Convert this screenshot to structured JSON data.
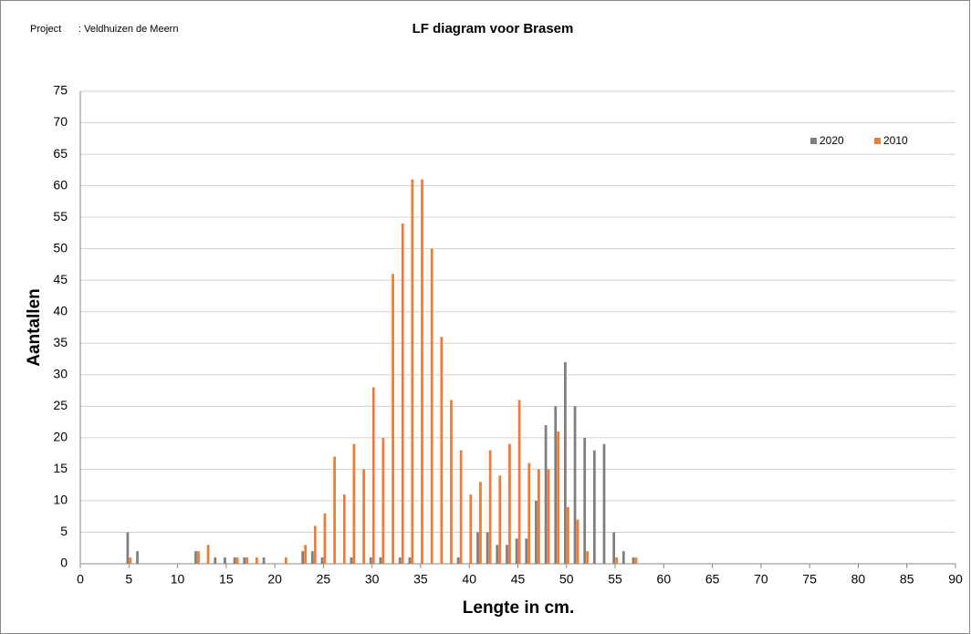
{
  "header": {
    "project_label": "Project",
    "project_name": ": Veldhuizen de Meern"
  },
  "chart_data": {
    "type": "bar",
    "title": "LF diagram voor Brasem",
    "x_label": "Lengte in cm.",
    "y_label": "Aantallen",
    "x": [
      5,
      6,
      12,
      13,
      14,
      15,
      16,
      17,
      18,
      19,
      21,
      23,
      24,
      25,
      26,
      27,
      28,
      29,
      30,
      31,
      32,
      33,
      34,
      35,
      36,
      37,
      38,
      39,
      40,
      41,
      42,
      43,
      44,
      45,
      46,
      47,
      48,
      49,
      50,
      51,
      52,
      53,
      54,
      55,
      56,
      57
    ],
    "series": [
      {
        "name": "2020",
        "color": "#7f7f7f",
        "values": [
          5,
          2,
          2,
          null,
          1,
          1,
          1,
          1,
          null,
          1,
          null,
          2,
          2,
          1,
          null,
          null,
          1,
          null,
          1,
          1,
          null,
          1,
          1,
          null,
          null,
          null,
          null,
          1,
          null,
          5,
          5,
          3,
          3,
          4,
          4,
          10,
          22,
          25,
          32,
          25,
          20,
          18,
          19,
          5,
          2,
          1
        ]
      },
      {
        "name": "2010",
        "color": "#ed7d31",
        "values": [
          1,
          null,
          2,
          3,
          null,
          null,
          1,
          1,
          1,
          null,
          1,
          3,
          6,
          8,
          17,
          11,
          19,
          15,
          28,
          20,
          46,
          54,
          61,
          61,
          50,
          36,
          26,
          18,
          11,
          13,
          18,
          14,
          19,
          26,
          16,
          15,
          15,
          21,
          9,
          7,
          2,
          null,
          null,
          1,
          null,
          1
        ]
      }
    ],
    "xlim": [
      0,
      90
    ],
    "xticks": [
      0,
      5,
      10,
      15,
      20,
      25,
      30,
      35,
      40,
      45,
      50,
      55,
      60,
      65,
      70,
      75,
      80,
      85,
      90
    ],
    "ylim": [
      0,
      75
    ],
    "yticks": [
      0,
      5,
      10,
      15,
      20,
      25,
      30,
      35,
      40,
      45,
      50,
      55,
      60,
      65,
      70,
      75
    ],
    "grid": true,
    "legend": "top-right"
  }
}
